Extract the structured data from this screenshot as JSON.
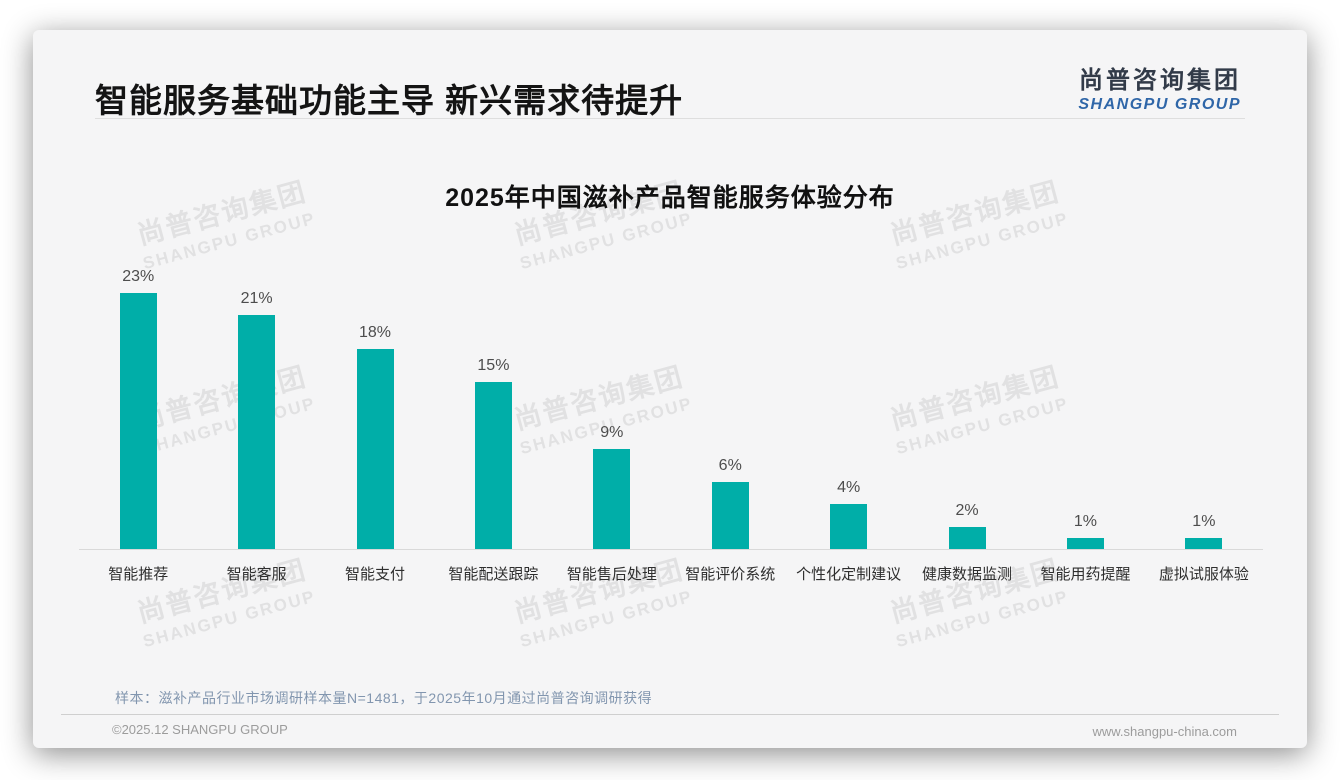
{
  "page": {
    "header": {
      "title": "智能服务基础功能主导 新兴需求待提升"
    },
    "logo": {
      "cn": "尚普咨询集团",
      "en": "SHANGPU GROUP"
    },
    "watermark": {
      "cn": "尚普咨询集团",
      "en": "SHANGPU GROUP"
    },
    "note": "样本：滋补产品行业市场调研样本量N=1481，于2025年10月通过尚普咨询调研获得",
    "footer": {
      "copyright": "©2025.12 SHANGPU GROUP",
      "website": "www.shangpu-china.com"
    }
  },
  "colors": {
    "bar": "#00AEA8",
    "logo_blue": "#2F66A8",
    "note_text": "#8296AF",
    "card_background": "#F5F5F6"
  },
  "chart_data": {
    "type": "bar",
    "title": "2025年中国滋补产品智能服务体验分布",
    "categories": [
      "智能推荐",
      "智能客服",
      "智能支付",
      "智能配送跟踪",
      "智能售后处理",
      "智能评价系统",
      "个性化定制建议",
      "健康数据监测",
      "智能用药提醒",
      "虚拟试服体验"
    ],
    "values": [
      23,
      21,
      18,
      15,
      9,
      6,
      4,
      2,
      1,
      1
    ],
    "unit": "%",
    "value_labels": [
      "23%",
      "21%",
      "18%",
      "15%",
      "9%",
      "6%",
      "4%",
      "2%",
      "1%",
      "1%"
    ],
    "xlabel": "",
    "ylabel": "",
    "ylim": [
      0,
      25
    ],
    "grid": false,
    "legend": false,
    "bar_color": "#00AEA8"
  }
}
